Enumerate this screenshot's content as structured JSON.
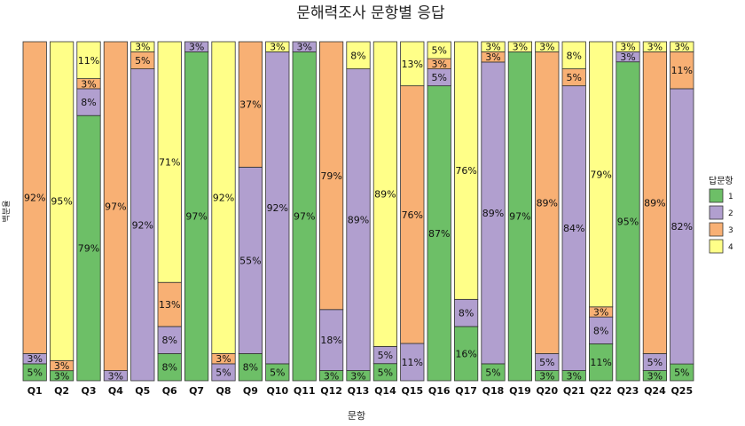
{
  "chart_data": {
    "type": "bar",
    "stacked": true,
    "percent": true,
    "title": "문해력조사 문항별 응답",
    "xlabel": "문항",
    "ylabel": "백분율",
    "ylim": [
      0,
      100
    ],
    "legend": {
      "title": "답문항",
      "position": "right"
    },
    "grid": false,
    "categories": [
      "Q1",
      "Q2",
      "Q3",
      "Q4",
      "Q5",
      "Q6",
      "Q7",
      "Q8",
      "Q9",
      "Q10",
      "Q11",
      "Q12",
      "Q13",
      "Q14",
      "Q15",
      "Q16",
      "Q17",
      "Q18",
      "Q19",
      "Q20",
      "Q21",
      "Q22",
      "Q23",
      "Q24",
      "Q25"
    ],
    "series": [
      {
        "name": "1",
        "color": "#6dbf67",
        "values": [
          5,
          3,
          79,
          0,
          0,
          8,
          97,
          0,
          8,
          5,
          97,
          3,
          3,
          5,
          0,
          87,
          16,
          5,
          97,
          3,
          3,
          11,
          95,
          3,
          5
        ]
      },
      {
        "name": "2",
        "color": "#b19fcf",
        "values": [
          3,
          0,
          8,
          3,
          92,
          8,
          3,
          5,
          55,
          92,
          3,
          18,
          89,
          5,
          11,
          5,
          8,
          89,
          0,
          5,
          84,
          8,
          3,
          5,
          82
        ]
      },
      {
        "name": "3",
        "color": "#f8b074",
        "values": [
          92,
          3,
          3,
          97,
          5,
          13,
          0,
          3,
          37,
          0,
          0,
          79,
          0,
          0,
          76,
          3,
          0,
          3,
          0,
          89,
          5,
          3,
          0,
          89,
          11
        ]
      },
      {
        "name": "4",
        "color": "#ffff88",
        "values": [
          0,
          95,
          11,
          0,
          3,
          71,
          0,
          92,
          0,
          3,
          0,
          0,
          8,
          89,
          13,
          5,
          76,
          3,
          3,
          3,
          8,
          79,
          3,
          3,
          3
        ]
      }
    ]
  }
}
